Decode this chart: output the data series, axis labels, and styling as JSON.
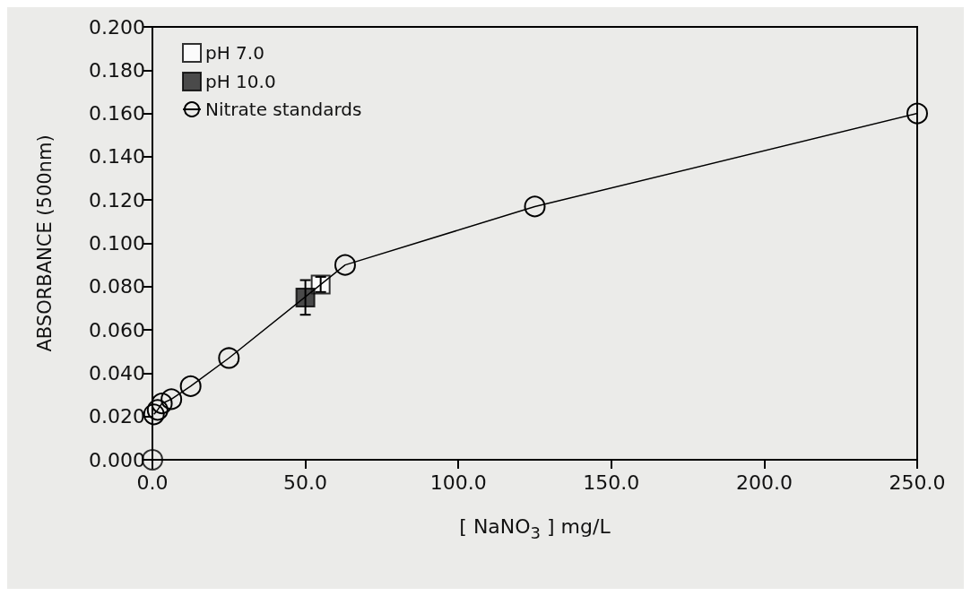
{
  "chart_data": {
    "type": "scatter",
    "xlabel": "[ NaNO$_{3}$ ] mg/L",
    "ylabel": "ABSORBANCE (500nm)",
    "xlim": [
      0,
      250
    ],
    "xticks": [
      {
        "value": 0,
        "label": "0.0"
      },
      {
        "value": 50,
        "label": "50.0"
      },
      {
        "value": 100,
        "label": "100.0"
      },
      {
        "value": 150,
        "label": "150.0"
      },
      {
        "value": 200,
        "label": "200.0"
      },
      {
        "value": 250,
        "label": "250.0"
      }
    ],
    "ylim": [
      0,
      0.2
    ],
    "yticks": [
      {
        "value": 0,
        "label": "0.000"
      },
      {
        "value": 0.02,
        "label": "0.020"
      },
      {
        "value": 0.04,
        "label": "0.040"
      },
      {
        "value": 0.06,
        "label": "0.060"
      },
      {
        "value": 0.08,
        "label": "0.080"
      },
      {
        "value": 0.1,
        "label": "0.100"
      },
      {
        "value": 0.12,
        "label": "0.120"
      },
      {
        "value": 0.14,
        "label": "0.140"
      },
      {
        "value": 0.16,
        "label": "0.160"
      },
      {
        "value": 0.18,
        "label": "0.180"
      },
      {
        "value": 0.2,
        "label": "0.200"
      }
    ],
    "grid": false,
    "legend": "top left",
    "series": [
      {
        "name": "pH 7.0",
        "marker": "square",
        "color": "#ffffff",
        "x": [
          55
        ],
        "values": [
          0.081
        ],
        "errors": [
          0.0035
        ]
      },
      {
        "name": "pH 10.0",
        "marker": "square",
        "color": "#222222",
        "x": [
          50
        ],
        "values": [
          0.075
        ],
        "errors": [
          0.008
        ]
      },
      {
        "name": "Nitrate standards",
        "type": "line",
        "marker": "circle",
        "color": "#000000",
        "x": [
          0.5,
          1.7,
          3.1,
          6.2,
          12.5,
          25,
          63,
          125,
          250
        ],
        "values": [
          0.021,
          0.023,
          0.026,
          0.028,
          0.034,
          0.047,
          0.09,
          0.117,
          0.16
        ]
      },
      {
        "marker": "circle",
        "color": "#000000",
        "x": [
          0
        ],
        "values": [
          0
        ]
      }
    ]
  }
}
